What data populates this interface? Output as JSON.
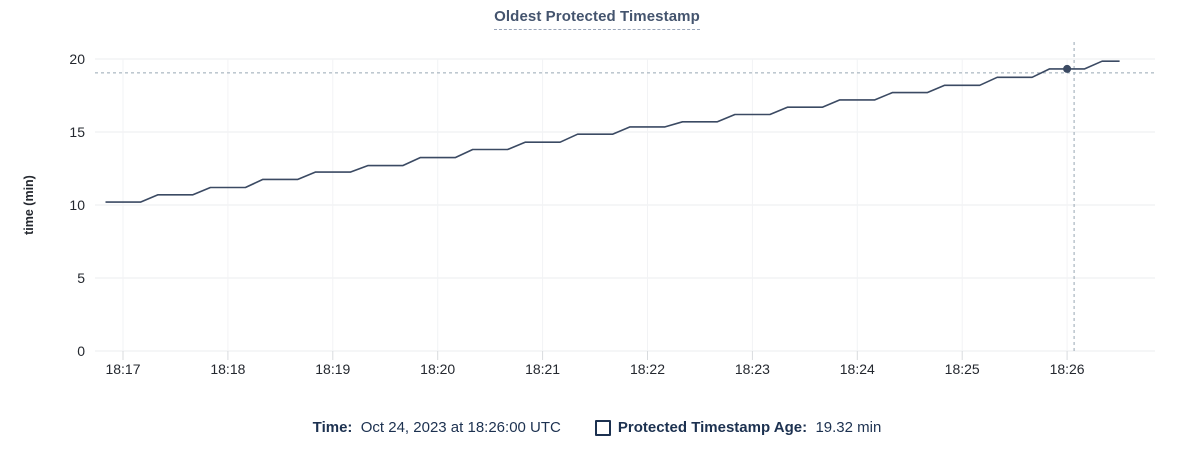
{
  "chart_data": {
    "type": "line",
    "title": "Oldest Protected Timestamp",
    "xlabel": "",
    "ylabel": "time (min)",
    "ylim": [
      0,
      20
    ],
    "yticks": [
      0,
      5,
      10,
      15,
      20
    ],
    "xticks": [
      "18:17",
      "18:18",
      "18:19",
      "18:20",
      "18:21",
      "18:22",
      "18:23",
      "18:24",
      "18:25",
      "18:26"
    ],
    "grid": true,
    "legend_position": "bottom",
    "series": [
      {
        "name": "Protected Timestamp Age",
        "points": [
          [
            "18:16:50",
            10.2
          ],
          [
            "18:17:00",
            10.2
          ],
          [
            "18:17:10",
            10.2
          ],
          [
            "18:17:20",
            10.7
          ],
          [
            "18:17:30",
            10.7
          ],
          [
            "18:17:40",
            10.7
          ],
          [
            "18:17:50",
            11.2
          ],
          [
            "18:18:00",
            11.2
          ],
          [
            "18:18:10",
            11.2
          ],
          [
            "18:18:20",
            11.75
          ],
          [
            "18:18:30",
            11.75
          ],
          [
            "18:18:40",
            11.75
          ],
          [
            "18:18:50",
            12.25
          ],
          [
            "18:19:00",
            12.25
          ],
          [
            "18:19:10",
            12.25
          ],
          [
            "18:19:20",
            12.7
          ],
          [
            "18:19:30",
            12.7
          ],
          [
            "18:19:40",
            12.7
          ],
          [
            "18:19:50",
            13.25
          ],
          [
            "18:20:00",
            13.25
          ],
          [
            "18:20:10",
            13.25
          ],
          [
            "18:20:20",
            13.8
          ],
          [
            "18:20:30",
            13.8
          ],
          [
            "18:20:40",
            13.8
          ],
          [
            "18:20:50",
            14.3
          ],
          [
            "18:21:00",
            14.3
          ],
          [
            "18:21:10",
            14.3
          ],
          [
            "18:21:20",
            14.85
          ],
          [
            "18:21:30",
            14.85
          ],
          [
            "18:21:40",
            14.85
          ],
          [
            "18:21:50",
            15.35
          ],
          [
            "18:22:00",
            15.35
          ],
          [
            "18:22:10",
            15.35
          ],
          [
            "18:22:20",
            15.7
          ],
          [
            "18:22:30",
            15.7
          ],
          [
            "18:22:40",
            15.7
          ],
          [
            "18:22:50",
            16.2
          ],
          [
            "18:23:00",
            16.2
          ],
          [
            "18:23:10",
            16.2
          ],
          [
            "18:23:20",
            16.7
          ],
          [
            "18:23:30",
            16.7
          ],
          [
            "18:23:40",
            16.7
          ],
          [
            "18:23:50",
            17.2
          ],
          [
            "18:24:00",
            17.2
          ],
          [
            "18:24:10",
            17.2
          ],
          [
            "18:24:20",
            17.7
          ],
          [
            "18:24:30",
            17.7
          ],
          [
            "18:24:40",
            17.7
          ],
          [
            "18:24:50",
            18.2
          ],
          [
            "18:25:00",
            18.2
          ],
          [
            "18:25:10",
            18.2
          ],
          [
            "18:25:20",
            18.75
          ],
          [
            "18:25:30",
            18.75
          ],
          [
            "18:25:40",
            18.75
          ],
          [
            "18:25:50",
            19.32
          ],
          [
            "18:26:00",
            19.32
          ],
          [
            "18:26:10",
            19.32
          ],
          [
            "18:26:20",
            19.85
          ],
          [
            "18:26:30",
            19.85
          ]
        ]
      }
    ],
    "hover": {
      "time": "18:26:00",
      "value": 19.32,
      "crosshair_time": "18:26:04",
      "crosshair_value": 19.05
    }
  },
  "legend": {
    "time_label": "Time:",
    "time_value": "Oct 24, 2023 at 18:26:00 UTC",
    "series_label": "Protected Timestamp Age:",
    "series_value": "19.32 min"
  },
  "colors": {
    "line": "#3b4a63",
    "dot": "#3b4a63",
    "crosshair": "#98a7b3",
    "grid_horizontal": "#ebedef",
    "grid_vertical": "#f2f3f5",
    "axis_tick": "#d8dbde",
    "title_text": "#44546e",
    "axis_text": "#24282f",
    "legend_text": "#1c3150"
  }
}
